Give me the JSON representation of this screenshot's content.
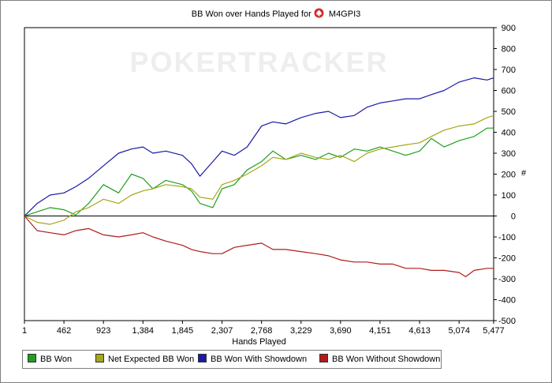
{
  "title_prefix": "BB Won over Hands Played for",
  "player": "M4GPI3",
  "watermark": "POKERTRACKER",
  "icons": {
    "title_logo": "poker-spade-logo-icon"
  },
  "colors": {
    "bb_won": "#1f9f1f",
    "net_expected": "#a6a61a",
    "with_showdown": "#1a1aa6",
    "without_showdown": "#b01c1c"
  },
  "chart_data": {
    "type": "line",
    "title": "BB Won over Hands Played for M4GPI3",
    "xlabel": "Hands Played",
    "ylabel": "",
    "y_unit_label": "#",
    "xlim": [
      1,
      5477
    ],
    "ylim": [
      -500,
      900
    ],
    "x_ticks": [
      "1",
      "462",
      "923",
      "1,384",
      "1,845",
      "2,307",
      "2,768",
      "3,229",
      "3,690",
      "4,151",
      "4,613",
      "5,074",
      "5,477"
    ],
    "x_tick_values": [
      1,
      462,
      923,
      1384,
      1845,
      2307,
      2768,
      3229,
      3690,
      4151,
      4613,
      5074,
      5477
    ],
    "y_ticks": [
      "900",
      "800",
      "700",
      "600",
      "500",
      "400",
      "300",
      "200",
      "100",
      "0",
      "-100",
      "-200",
      "-300",
      "-400",
      "-500"
    ],
    "y_tick_values": [
      900,
      800,
      700,
      600,
      500,
      400,
      300,
      200,
      100,
      0,
      -100,
      -200,
      -300,
      -400,
      -500
    ],
    "grid": false,
    "legend_position": "bottom-left",
    "series": [
      {
        "name": "BB Won",
        "color": "#1f9f1f",
        "x": [
          1,
          150,
          300,
          462,
          600,
          750,
          923,
          1100,
          1250,
          1384,
          1500,
          1650,
          1845,
          1950,
          2050,
          2200,
          2307,
          2450,
          2600,
          2768,
          2900,
          3050,
          3229,
          3400,
          3550,
          3690,
          3850,
          4000,
          4151,
          4300,
          4450,
          4613,
          4750,
          4900,
          5074,
          5250,
          5400,
          5477
        ],
        "values": [
          0,
          20,
          40,
          30,
          5,
          60,
          150,
          110,
          200,
          180,
          130,
          170,
          150,
          120,
          60,
          40,
          130,
          150,
          220,
          260,
          310,
          270,
          290,
          270,
          300,
          280,
          320,
          310,
          330,
          310,
          290,
          310,
          370,
          330,
          360,
          380,
          420,
          420
        ]
      },
      {
        "name": "Net Expected BB Won",
        "color": "#a6a61a",
        "x": [
          1,
          150,
          300,
          462,
          600,
          750,
          923,
          1100,
          1250,
          1384,
          1500,
          1650,
          1845,
          1950,
          2050,
          2200,
          2307,
          2450,
          2600,
          2768,
          2900,
          3050,
          3229,
          3400,
          3550,
          3690,
          3850,
          4000,
          4151,
          4300,
          4450,
          4613,
          4750,
          4900,
          5074,
          5250,
          5400,
          5477
        ],
        "values": [
          0,
          -30,
          -40,
          -20,
          20,
          40,
          80,
          60,
          100,
          120,
          130,
          150,
          140,
          130,
          90,
          80,
          150,
          170,
          200,
          240,
          280,
          270,
          300,
          280,
          270,
          290,
          260,
          300,
          320,
          330,
          340,
          350,
          380,
          410,
          430,
          440,
          470,
          480
        ]
      },
      {
        "name": "BB Won With Showdown",
        "color": "#1a1aa6",
        "x": [
          1,
          150,
          300,
          462,
          600,
          750,
          923,
          1100,
          1250,
          1384,
          1500,
          1650,
          1845,
          1950,
          2050,
          2200,
          2307,
          2450,
          2600,
          2768,
          2900,
          3050,
          3229,
          3400,
          3550,
          3690,
          3850,
          4000,
          4151,
          4300,
          4450,
          4613,
          4750,
          4900,
          5074,
          5250,
          5400,
          5477
        ],
        "values": [
          0,
          60,
          100,
          110,
          140,
          180,
          240,
          300,
          320,
          330,
          300,
          310,
          290,
          250,
          190,
          260,
          310,
          290,
          330,
          430,
          450,
          440,
          470,
          490,
          500,
          470,
          480,
          520,
          540,
          550,
          560,
          560,
          580,
          600,
          640,
          660,
          650,
          660
        ]
      },
      {
        "name": "BB Won Without Showdown",
        "color": "#b01c1c",
        "x": [
          1,
          150,
          300,
          462,
          600,
          750,
          923,
          1100,
          1250,
          1384,
          1500,
          1650,
          1845,
          1950,
          2050,
          2200,
          2307,
          2450,
          2600,
          2768,
          2900,
          3050,
          3229,
          3400,
          3550,
          3690,
          3850,
          4000,
          4151,
          4300,
          4450,
          4613,
          4750,
          4900,
          5074,
          5150,
          5250,
          5400,
          5477
        ],
        "values": [
          0,
          -70,
          -80,
          -90,
          -70,
          -60,
          -90,
          -100,
          -90,
          -80,
          -100,
          -120,
          -140,
          -160,
          -170,
          -180,
          -180,
          -150,
          -140,
          -130,
          -160,
          -160,
          -170,
          -180,
          -190,
          -210,
          -220,
          -220,
          -230,
          -230,
          -250,
          -250,
          -260,
          -260,
          -270,
          -290,
          -260,
          -250,
          -250
        ]
      }
    ]
  }
}
